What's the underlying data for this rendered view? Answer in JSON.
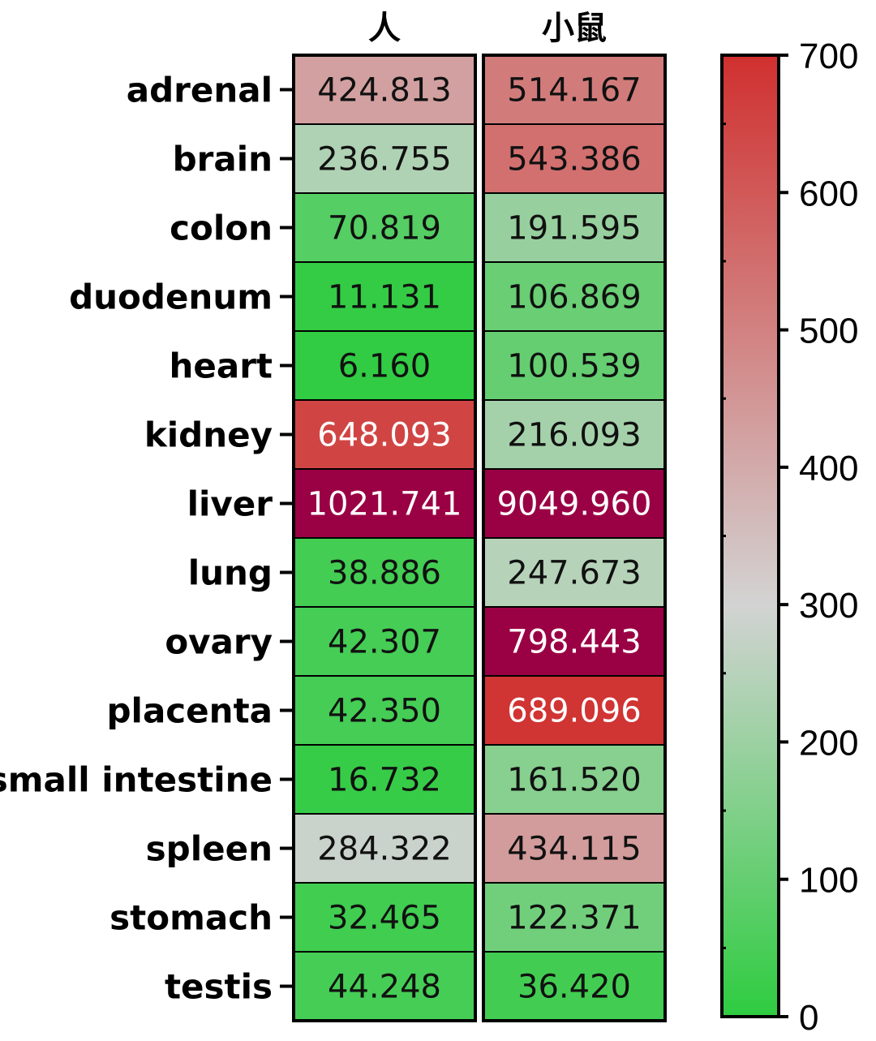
{
  "chart_data": {
    "type": "heatmap",
    "columns": [
      "人",
      "小鼠"
    ],
    "rows": [
      "adrenal",
      "brain",
      "colon",
      "duodenum",
      "heart",
      "kidney",
      "liver",
      "lung",
      "ovary",
      "placenta",
      "small intestine",
      "spleen",
      "stomach",
      "testis"
    ],
    "values": [
      [
        "424.813",
        "514.167"
      ],
      [
        "236.755",
        "543.386"
      ],
      [
        "70.819",
        "191.595"
      ],
      [
        "11.131",
        "106.869"
      ],
      [
        "6.160",
        "100.539"
      ],
      [
        "648.093",
        "216.093"
      ],
      [
        "1021.741",
        "9049.960"
      ],
      [
        "38.886",
        "247.673"
      ],
      [
        "42.307",
        "798.443"
      ],
      [
        "42.350",
        "689.096"
      ],
      [
        "16.732",
        "161.520"
      ],
      [
        "284.322",
        "434.115"
      ],
      [
        "32.465",
        "122.371"
      ],
      [
        "44.248",
        "36.420"
      ]
    ],
    "colorbar": {
      "min": 0,
      "max": 700,
      "ticks": [
        "0",
        "100",
        "200",
        "300",
        "400",
        "500",
        "600",
        "700"
      ],
      "colors": {
        "low": "#2ecc40",
        "mid": "#d3d3d3",
        "high": "#d0302f",
        "over": "#9a0044"
      }
    }
  }
}
